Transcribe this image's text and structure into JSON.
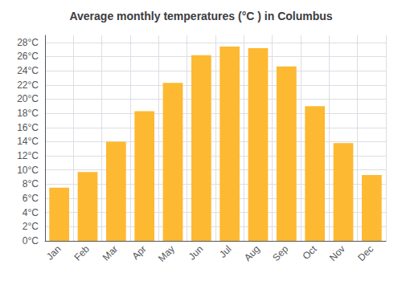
{
  "chart_data": {
    "type": "bar",
    "title": "Average monthly temperatures (°C ) in Columbus",
    "categories": [
      "Jan",
      "Feb",
      "Mar",
      "Apr",
      "May",
      "Jun",
      "Jul",
      "Aug",
      "Sep",
      "Oct",
      "Nov",
      "Dec"
    ],
    "values": [
      7.5,
      9.7,
      14.0,
      18.3,
      22.3,
      26.2,
      27.4,
      27.2,
      24.6,
      19.0,
      13.8,
      9.3
    ],
    "color": "#FDB931",
    "ylim": [
      0,
      29
    ],
    "yticks": [
      {
        "value": 0,
        "label": "0°C"
      },
      {
        "value": 2,
        "label": "2°C"
      },
      {
        "value": 4,
        "label": "4°C"
      },
      {
        "value": 6,
        "label": "6°C"
      },
      {
        "value": 8,
        "label": "8°C"
      },
      {
        "value": 10,
        "label": "10°C"
      },
      {
        "value": 12,
        "label": "12°C"
      },
      {
        "value": 14,
        "label": "14°C"
      },
      {
        "value": 16,
        "label": "16°C"
      },
      {
        "value": 18,
        "label": "18°C"
      },
      {
        "value": 20,
        "label": "20°C"
      },
      {
        "value": 22,
        "label": "22°C"
      },
      {
        "value": 24,
        "label": "24°C"
      },
      {
        "value": 26,
        "label": "26°C"
      },
      {
        "value": 28,
        "label": "28°C"
      }
    ],
    "grid": true
  }
}
